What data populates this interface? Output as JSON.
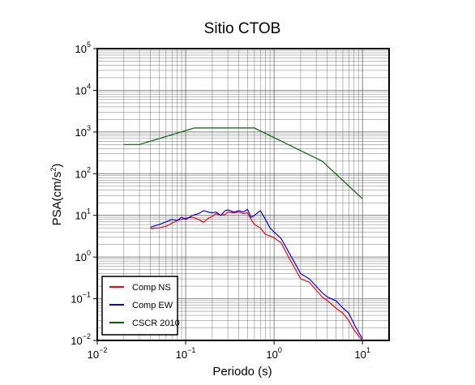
{
  "chart_data": {
    "type": "line",
    "title": "Sitio CTOB",
    "xlabel": "Periodo (s)",
    "ylabel_base": "PSA(cm/s",
    "ylabel_sup": "2",
    "ylabel_end": ")",
    "xscale": "log",
    "yscale": "log",
    "xlim": [
      0.01,
      20
    ],
    "ylim": [
      0.01,
      100000
    ],
    "grid": true,
    "legend_position": "bottom-left",
    "x_ticks": [
      {
        "value": 0.01,
        "base": "10",
        "exp": "−2"
      },
      {
        "value": 0.1,
        "base": "10",
        "exp": "−1"
      },
      {
        "value": 1,
        "base": "10",
        "exp": "0"
      },
      {
        "value": 10,
        "base": "10",
        "exp": "1"
      }
    ],
    "y_ticks": [
      {
        "value": 0.01,
        "base": "10",
        "exp": "−2"
      },
      {
        "value": 0.1,
        "base": "10",
        "exp": "−1"
      },
      {
        "value": 1,
        "base": "10",
        "exp": "0"
      },
      {
        "value": 10,
        "base": "10",
        "exp": "1"
      },
      {
        "value": 100,
        "base": "10",
        "exp": "2"
      },
      {
        "value": 1000,
        "base": "10",
        "exp": "3"
      },
      {
        "value": 10000,
        "base": "10",
        "exp": "4"
      },
      {
        "value": 100000,
        "base": "10",
        "exp": "5"
      }
    ],
    "series": [
      {
        "name": "Comp NS",
        "color": "#ff0000",
        "x": [
          0.04,
          0.05,
          0.06,
          0.07,
          0.08,
          0.09,
          0.1,
          0.12,
          0.14,
          0.16,
          0.18,
          0.2,
          0.22,
          0.25,
          0.28,
          0.3,
          0.35,
          0.4,
          0.45,
          0.5,
          0.55,
          0.6,
          0.7,
          0.8,
          0.9,
          1.0,
          1.2,
          1.5,
          1.8,
          2.0,
          2.5,
          3.0,
          3.5,
          4.0,
          5.0,
          6.0,
          7.0,
          8.0,
          9.0,
          10.0
        ],
        "y": [
          4.8,
          5.0,
          5.5,
          6.5,
          7.5,
          8.0,
          8.5,
          9.0,
          8.0,
          6.8,
          8.5,
          9.5,
          11.0,
          10.0,
          10.5,
          12.0,
          11.5,
          12.0,
          11.0,
          11.5,
          8.0,
          6.0,
          5.0,
          3.5,
          3.2,
          2.9,
          2.2,
          0.9,
          0.45,
          0.3,
          0.25,
          0.16,
          0.11,
          0.09,
          0.06,
          0.045,
          0.03,
          0.018,
          0.013,
          0.01
        ]
      },
      {
        "name": "Comp EW",
        "color": "#0000ff",
        "x": [
          0.04,
          0.05,
          0.06,
          0.07,
          0.08,
          0.09,
          0.1,
          0.12,
          0.14,
          0.16,
          0.18,
          0.2,
          0.22,
          0.25,
          0.28,
          0.3,
          0.35,
          0.4,
          0.45,
          0.5,
          0.55,
          0.6,
          0.7,
          0.8,
          0.9,
          1.0,
          1.2,
          1.5,
          1.8,
          2.0,
          2.5,
          3.0,
          3.5,
          4.0,
          5.0,
          6.0,
          7.0,
          8.0,
          9.0,
          10.0
        ],
        "y": [
          5.2,
          6.0,
          7.0,
          8.0,
          7.5,
          9.0,
          8.0,
          10.0,
          11.0,
          13.0,
          12.0,
          11.5,
          12.0,
          10.0,
          13.0,
          13.5,
          12.0,
          13.0,
          12.0,
          14.0,
          9.0,
          10.0,
          13.0,
          8.0,
          5.0,
          4.0,
          2.8,
          1.2,
          0.6,
          0.4,
          0.3,
          0.2,
          0.14,
          0.11,
          0.09,
          0.06,
          0.045,
          0.025,
          0.016,
          0.011
        ]
      },
      {
        "name": "CSCR 2010",
        "color": "#006400",
        "x": [
          0.02,
          0.03,
          0.125,
          0.6,
          3.5,
          10.0
        ],
        "y": [
          500,
          500,
          1250,
          1250,
          200,
          25
        ]
      }
    ]
  }
}
